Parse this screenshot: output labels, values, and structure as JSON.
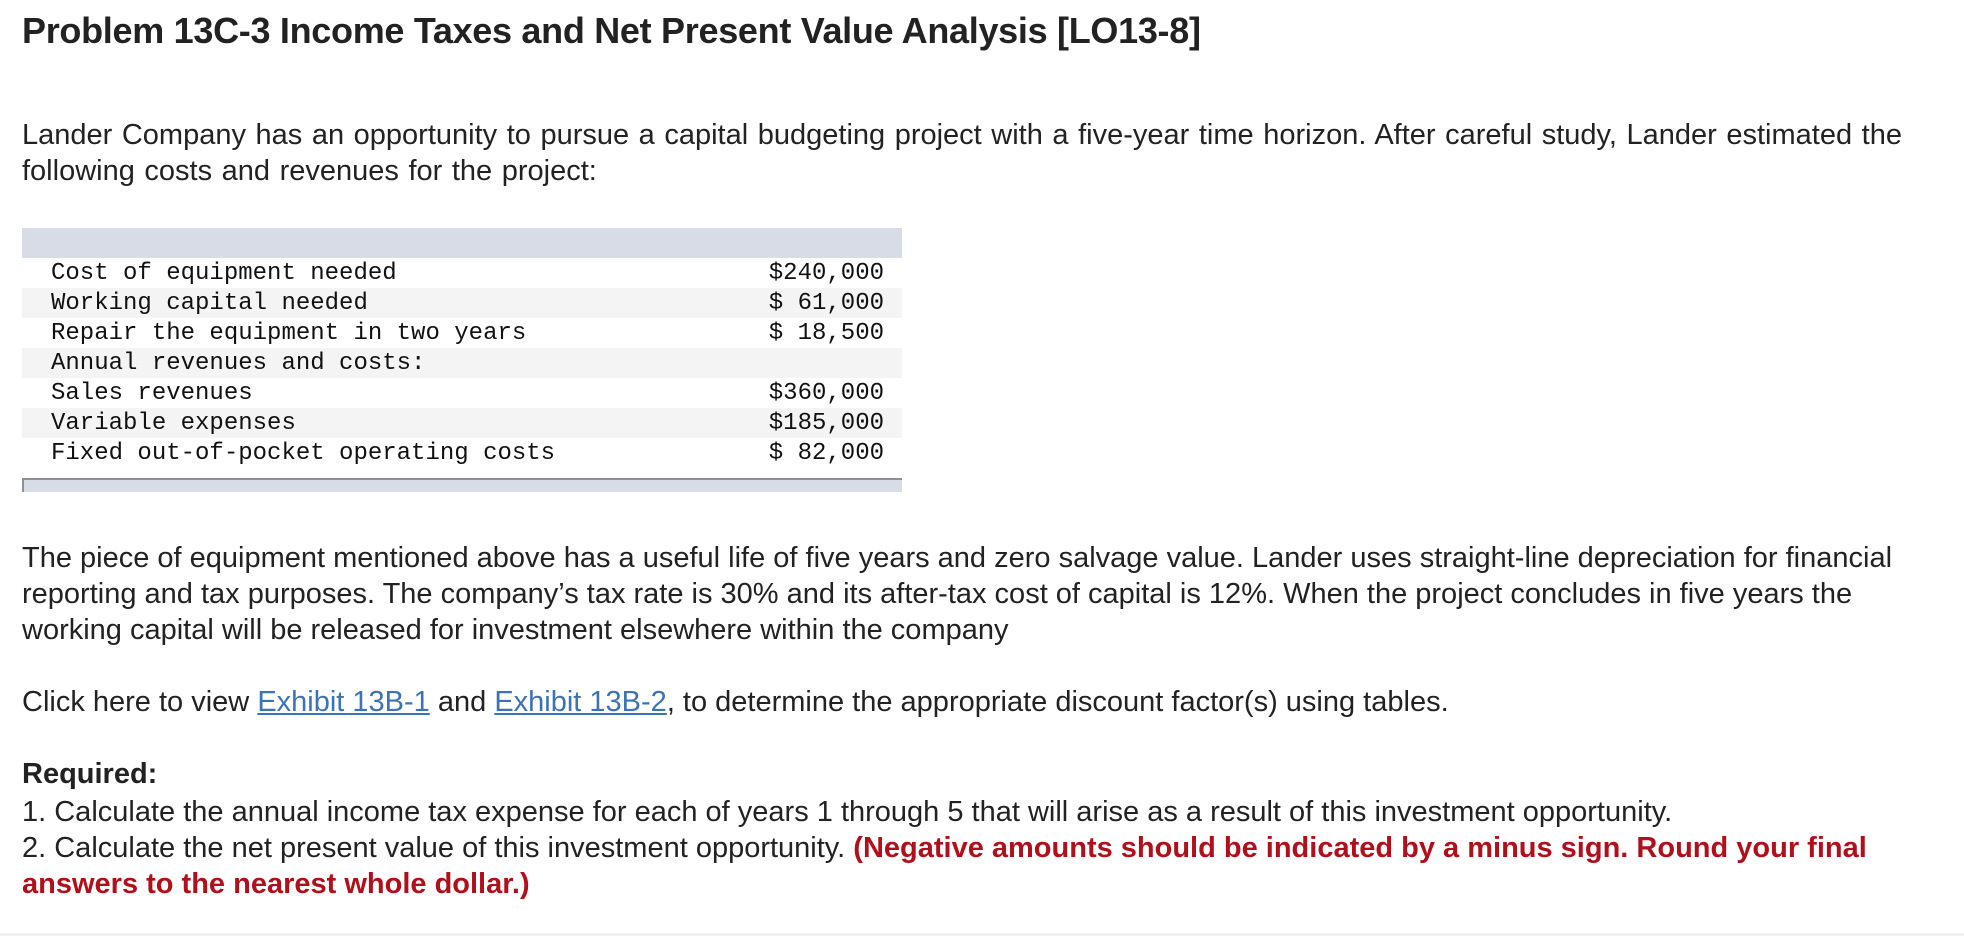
{
  "problem": {
    "title": "Problem 13C-3 Income Taxes and Net Present Value Analysis [LO13-8]",
    "intro": "Lander Company has an opportunity to pursue a capital budgeting project with a five-year time horizon. After careful study, Lander estimated the following costs and revenues for the project:"
  },
  "table": {
    "rows": [
      {
        "label": "Cost of equipment needed",
        "value": "$240,000"
      },
      {
        "label": "Working capital needed",
        "value": "$ 61,000"
      },
      {
        "label": "Repair the equipment in two years",
        "value": "$ 18,500"
      },
      {
        "label": "Annual revenues and costs:",
        "value": ""
      },
      {
        "label": "Sales revenues",
        "value": "$360,000"
      },
      {
        "label": "Variable expenses",
        "value": "$185,000"
      },
      {
        "label": "Fixed out-of-pocket operating costs",
        "value": "$ 82,000"
      }
    ]
  },
  "details": {
    "text": "The piece of equipment mentioned above has a useful life of five years and zero salvage value. Lander uses straight-line depreciation for financial reporting and tax purposes. The company’s tax rate is 30% and its after-tax cost of capital is 12%. When the project concludes in five years the working capital will be released for investment elsewhere within the company"
  },
  "exhibits": {
    "prefix": "Click here to view ",
    "link1": "Exhibit 13B-1",
    "middle": " and ",
    "link2": "Exhibit 13B-2",
    "suffix": ", to determine the appropriate discount factor(s) using tables.",
    "link_color": "#3a73b6"
  },
  "required": {
    "heading": "Required:",
    "item1": "1. Calculate the annual income tax expense for each of years 1 through 5 that will arise as a result of this investment opportunity.",
    "item2": "2. Calculate the net present value of this investment opportunity. ",
    "item2_warning": "(Negative amounts should be indicated by a minus sign. Round your final answers to the nearest whole dollar.)",
    "warning_color": "#b0101b"
  }
}
